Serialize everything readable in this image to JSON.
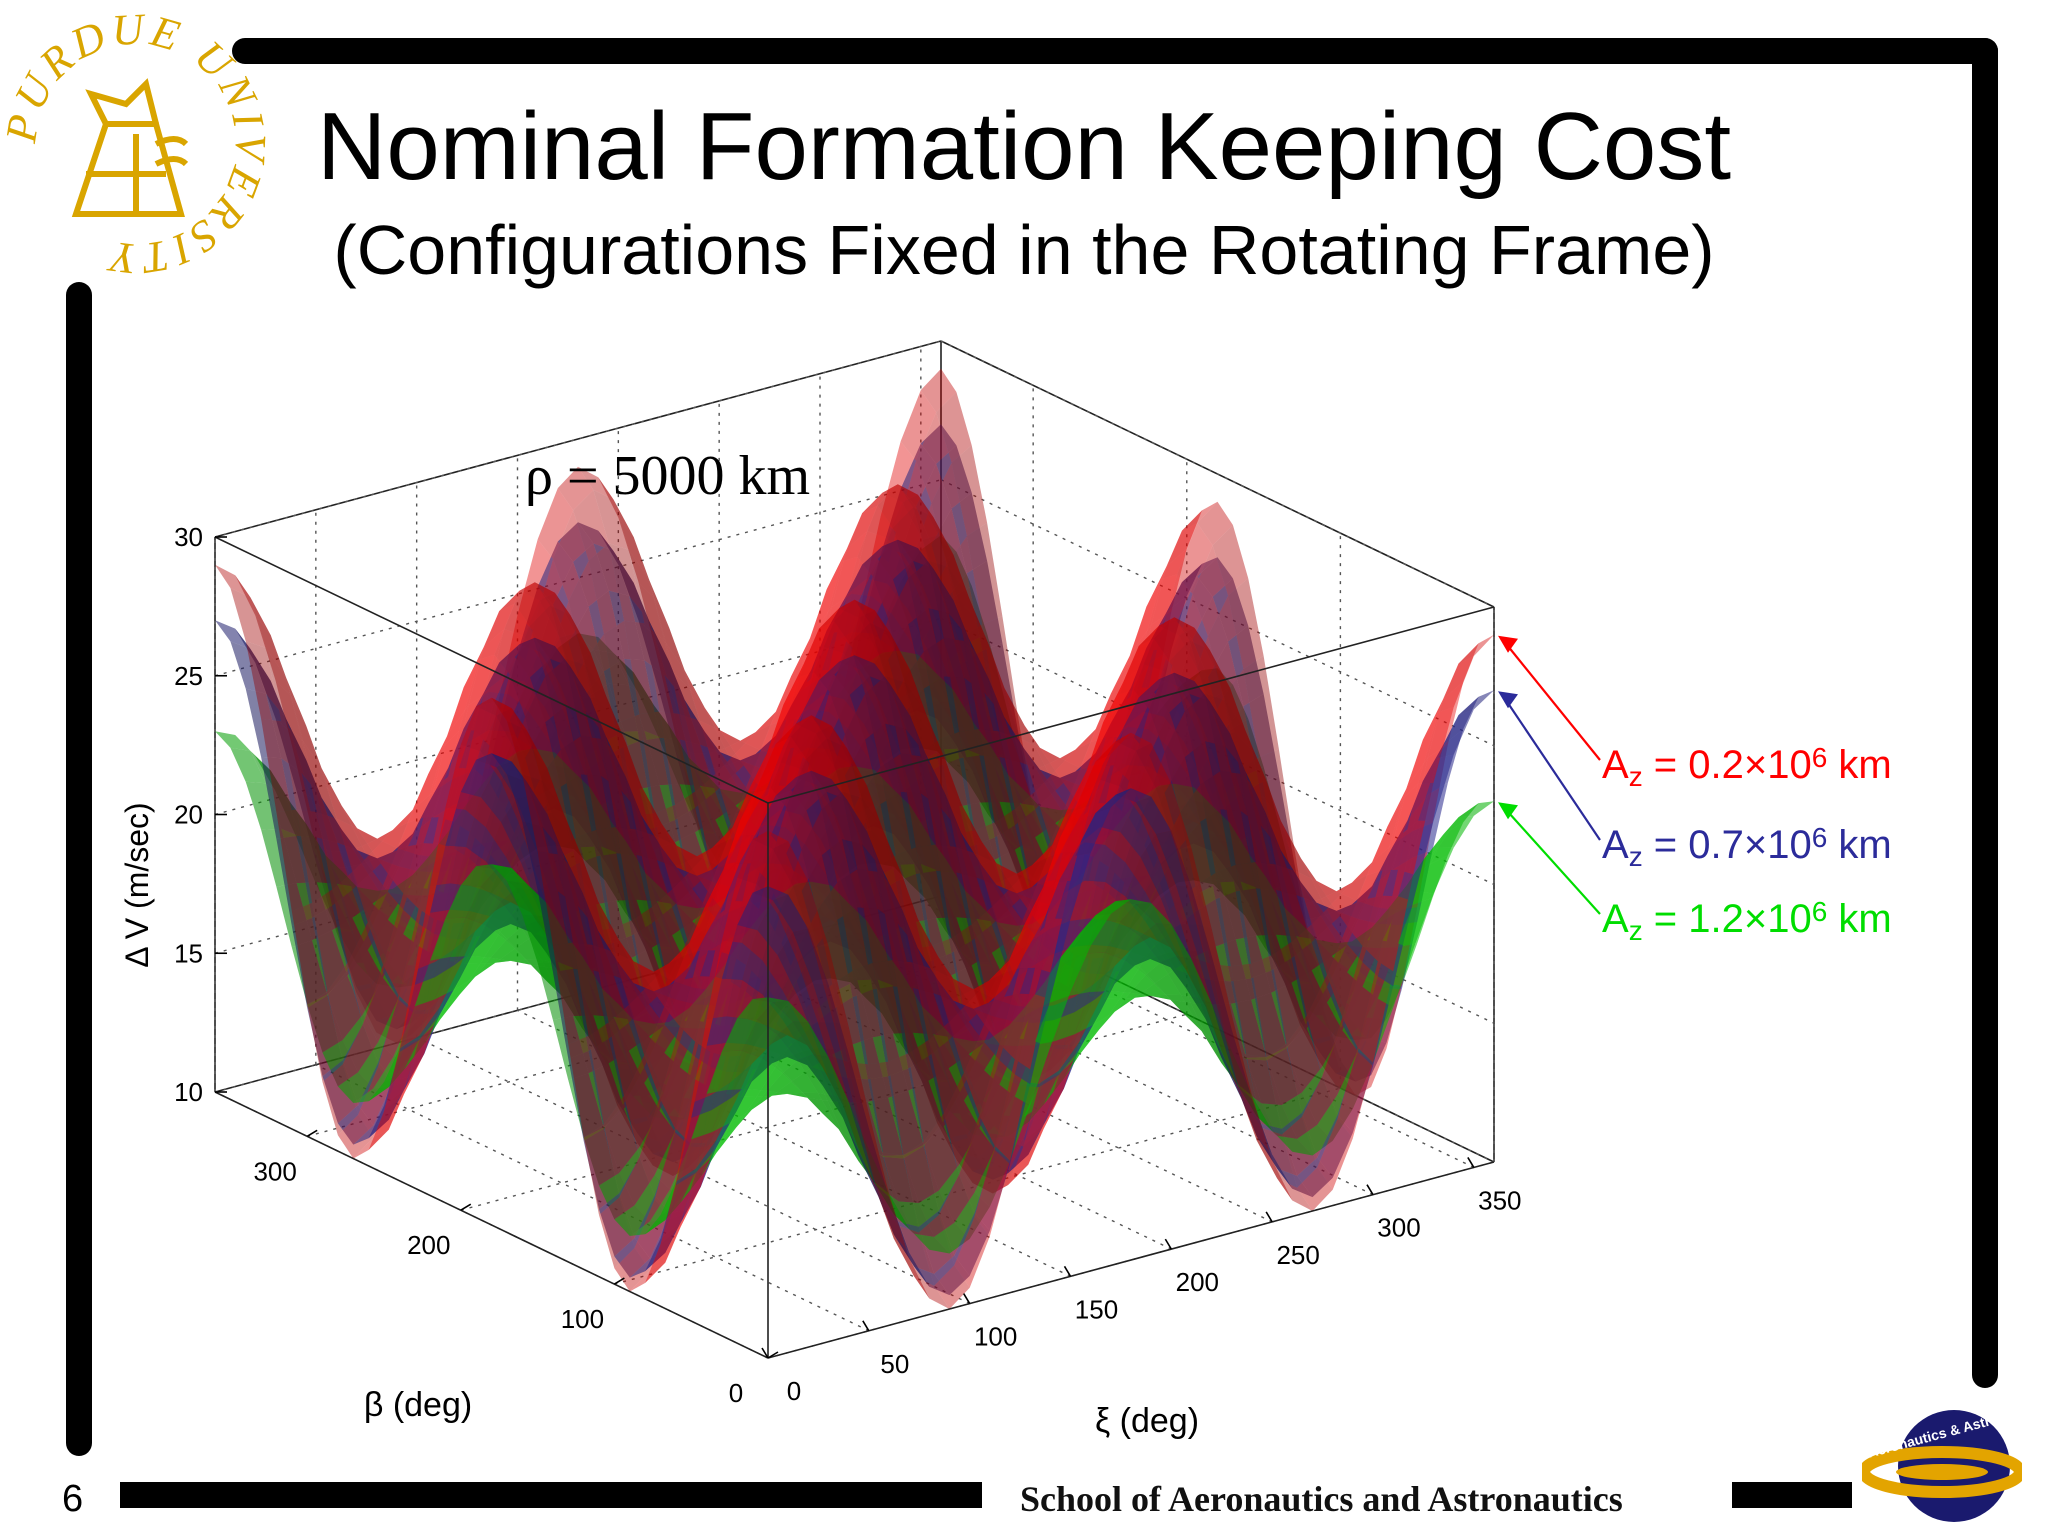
{
  "slide": {
    "title": "Nominal Formation Keeping Cost",
    "subtitle": "(Configurations Fixed in the Rotating Frame)",
    "slide_number": "6",
    "footer": "School of Aeronautics and Astronautics",
    "logo_left_text": "PURDUE UNIVERSITY",
    "logo_right_text": "Aeronautics & Astronautics",
    "colors": {
      "bar": "#000000",
      "logo_gold": "#d9a500",
      "logo_blue": "#1a1a6e"
    }
  },
  "chart_data": {
    "type": "surface3d",
    "annotation": "ρ = 5000 km",
    "zlabel": "Δ V (m/sec)",
    "xlabel": "ξ (deg)",
    "ylabel": "β (deg)",
    "zlim": [
      10,
      30
    ],
    "xlim": [
      0,
      360
    ],
    "ylim": [
      0,
      360
    ],
    "z_ticks": [
      "10",
      "15",
      "20",
      "25",
      "30"
    ],
    "x_ticks": [
      "0",
      "50",
      "100",
      "150",
      "200",
      "250",
      "300",
      "350"
    ],
    "y_ticks": [
      "0",
      "100",
      "200",
      "300"
    ],
    "grid": true,
    "series": [
      {
        "name_prefix": "A",
        "name_sub": "z",
        "name_mid": " = 0.2×10",
        "name_sup": "6",
        "name_suffix": " km",
        "color": "#ff0000",
        "min": 10,
        "max": 29
      },
      {
        "name_prefix": "A",
        "name_sub": "z",
        "name_mid": " = 0.7×10",
        "name_sup": "6",
        "name_suffix": " km",
        "color": "#2b2b9a",
        "min": 10.5,
        "max": 27
      },
      {
        "name_prefix": "A",
        "name_sub": "z",
        "name_mid": " = 1.2×10",
        "name_sup": "6",
        "name_suffix": " km",
        "color": "#00dd00",
        "min": 12,
        "max": 23
      }
    ]
  }
}
